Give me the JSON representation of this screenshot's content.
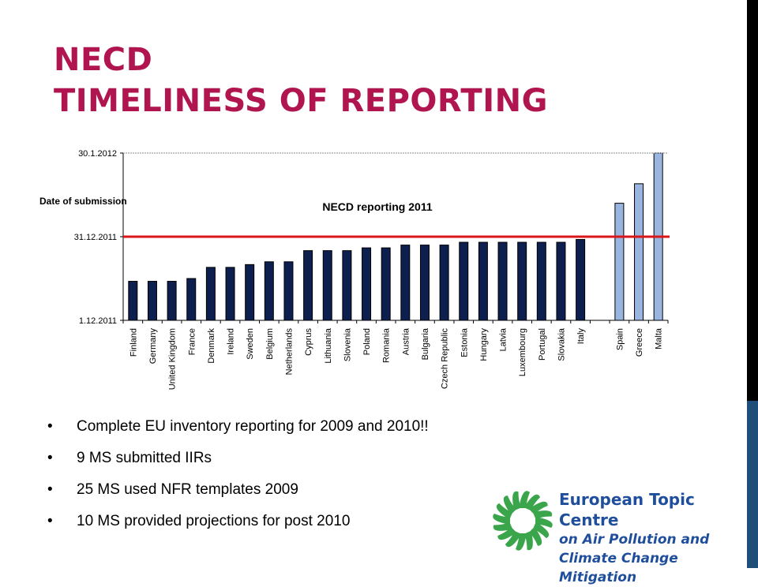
{
  "slide": {
    "title_line1": "NECD",
    "title_line2": "TIMELINESS OF REPORTING",
    "bullets": [
      "Complete EU inventory reporting for 2009 and 2010!!",
      "9 MS submitted IIRs",
      "25 MS used NFR templates 2009",
      "10 MS provided projections for post 2010"
    ],
    "logo": {
      "line1": "European Topic Centre",
      "line2": "on Air Pollution and",
      "line3": "Climate Change Mitigation"
    }
  },
  "colors": {
    "title": "#b0154f",
    "bar_on_time": "#0d1f4f",
    "bar_late": "#99b5e0",
    "deadline_line": "#d9161a",
    "logo_text": "#1f4e9c",
    "logo_star": "#3aa54a"
  },
  "chart_data": {
    "type": "bar",
    "title": "NECD reporting 2011",
    "ylabel": "Date of submission",
    "y_unit": "date",
    "ylim": [
      "2011-12-01",
      "2012-01-30"
    ],
    "y_ticks": [
      "1.12.2011",
      "31.12.2011",
      "30.1.2012"
    ],
    "deadline": "2011-12-31",
    "grid": "top line only",
    "categories": [
      "Finland",
      "Germany",
      "United Kingdom",
      "France",
      "Denmark",
      "Ireland",
      "Sweden",
      "Belgium",
      "Netherlands",
      "Cyprus",
      "Lithuania",
      "Slovenia",
      "Poland",
      "Romania",
      "Austria",
      "Bulgaria",
      "Czech Republic",
      "Estonia",
      "Hungary",
      "Latvia",
      "Luxembourg",
      "Portugal",
      "Slovakia",
      "Italy",
      "",
      "Spain",
      "Greece",
      "Malta"
    ],
    "values": [
      "2011-12-15",
      "2011-12-15",
      "2011-12-15",
      "2011-12-16",
      "2011-12-20",
      "2011-12-20",
      "2011-12-21",
      "2011-12-22",
      "2011-12-22",
      "2011-12-26",
      "2011-12-26",
      "2011-12-26",
      "2011-12-27",
      "2011-12-27",
      "2011-12-28",
      "2011-12-28",
      "2011-12-28",
      "2011-12-29",
      "2011-12-29",
      "2011-12-29",
      "2011-12-29",
      "2011-12-29",
      "2011-12-29",
      "2011-12-30",
      null,
      "2012-01-12",
      "2012-01-19",
      "2012-01-30"
    ],
    "late": [
      false,
      false,
      false,
      false,
      false,
      false,
      false,
      false,
      false,
      false,
      false,
      false,
      false,
      false,
      false,
      false,
      false,
      false,
      false,
      false,
      false,
      false,
      false,
      false,
      false,
      true,
      true,
      true
    ]
  }
}
